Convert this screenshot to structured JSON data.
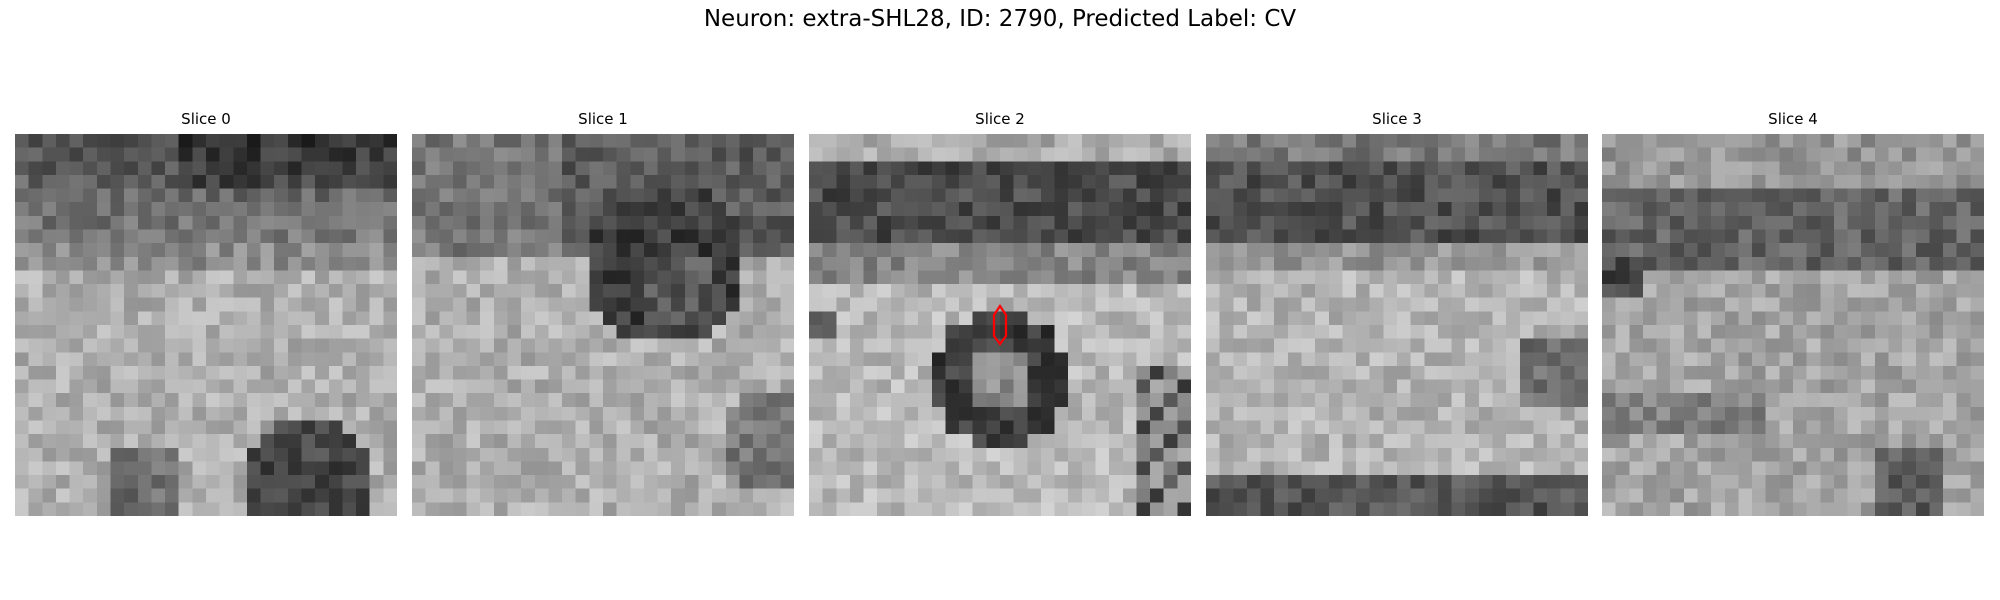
{
  "figure": {
    "title": "Neuron: extra-SHL28, ID: 2790, Predicted Label: CV"
  },
  "slices": [
    {
      "label": "Slice 0"
    },
    {
      "label": "Slice 1"
    },
    {
      "label": "Slice 2"
    },
    {
      "label": "Slice 3"
    },
    {
      "label": "Slice 4"
    }
  ],
  "marker": {
    "slice": 2,
    "color": "#ff0000"
  }
}
